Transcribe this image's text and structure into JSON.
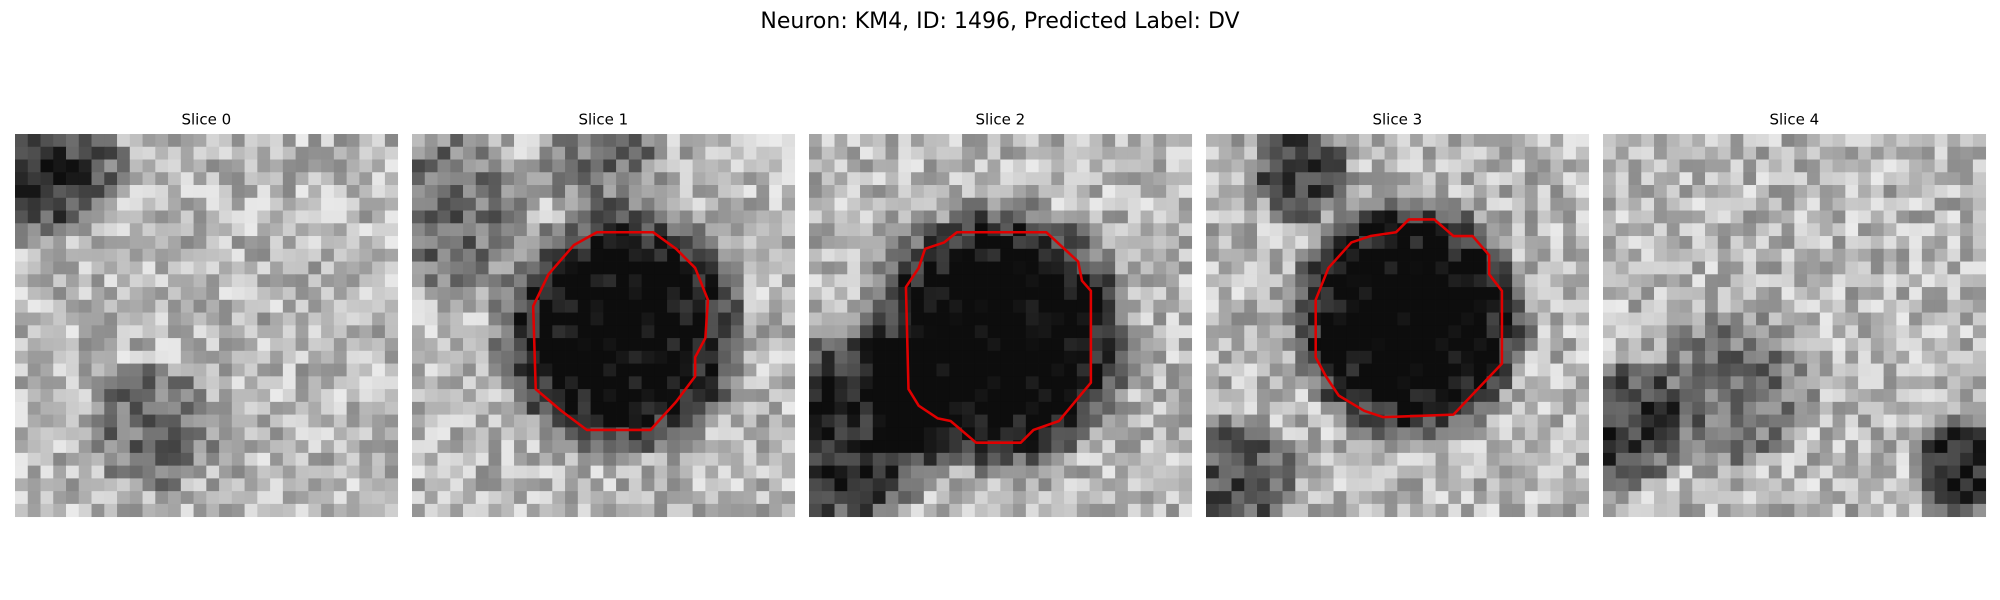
{
  "figure": {
    "title": "Neuron: KM4, ID: 1496, Predicted Label: DV",
    "panels": [
      {
        "title": "Slice 0"
      },
      {
        "title": "Slice 1"
      },
      {
        "title": "Slice 2"
      },
      {
        "title": "Slice 3"
      },
      {
        "title": "Slice 4"
      }
    ]
  }
}
